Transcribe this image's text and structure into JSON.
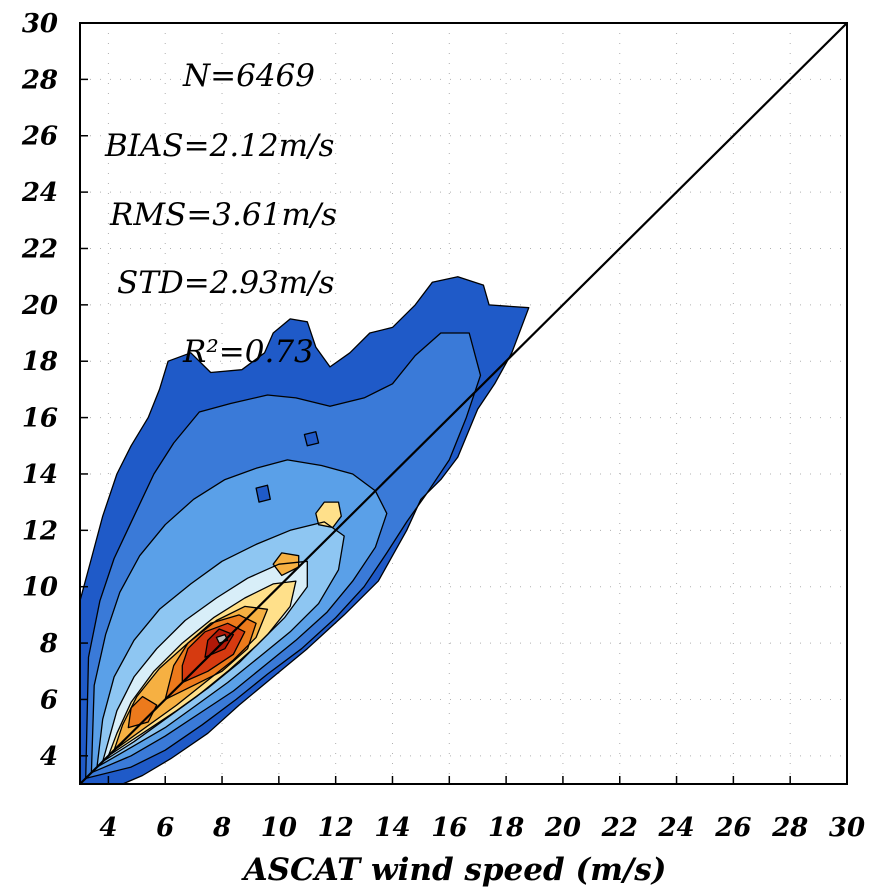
{
  "chart_data": {
    "type": "heatmap",
    "xlabel": "ASCAT wind speed (m/s)",
    "ylabel": "",
    "xlim": [
      3,
      30
    ],
    "ylim": [
      3,
      30
    ],
    "x_ticks": [
      4,
      6,
      8,
      10,
      12,
      14,
      16,
      18,
      20,
      22,
      24,
      26,
      28,
      30
    ],
    "y_ticks": [
      4,
      6,
      8,
      10,
      12,
      14,
      16,
      18,
      20,
      22,
      24,
      26,
      28,
      30
    ],
    "grid": true,
    "reference_line": "y = x",
    "annotations": [
      "N=6469",
      "BIAS=2.12m/s",
      "RMS=3.61m/s",
      "STD=2.93m/s",
      "R²=0.73"
    ],
    "stats": {
      "N": 6469,
      "BIAS": 2.12,
      "RMS": 3.61,
      "STD": 2.93,
      "R2": 0.73
    },
    "levels": [
      {
        "color": "#1f5ac8",
        "polygon": [
          [
            3,
            3
          ],
          [
            4.5,
            3
          ],
          [
            5.2,
            3.3
          ],
          [
            6.2,
            3.9
          ],
          [
            7.5,
            4.8
          ],
          [
            8.6,
            5.8
          ],
          [
            9.8,
            6.8
          ],
          [
            11,
            7.8
          ],
          [
            12.3,
            9
          ],
          [
            13.5,
            10.2
          ],
          [
            14,
            11.1
          ],
          [
            14.5,
            12
          ],
          [
            15,
            13.1
          ],
          [
            15.7,
            13.8
          ],
          [
            16.3,
            14.6
          ],
          [
            17,
            16.3
          ],
          [
            17.6,
            17.2
          ],
          [
            18.2,
            18.3
          ],
          [
            18.8,
            19.9
          ],
          [
            17.4,
            20
          ],
          [
            17.2,
            20.7
          ],
          [
            16.3,
            21
          ],
          [
            15.4,
            20.8
          ],
          [
            14.8,
            20
          ],
          [
            14,
            19.2
          ],
          [
            13.2,
            19
          ],
          [
            12.5,
            18.3
          ],
          [
            11.8,
            17.8
          ],
          [
            11.3,
            18.5
          ],
          [
            11,
            19.4
          ],
          [
            10.4,
            19.5
          ],
          [
            9.8,
            19
          ],
          [
            9.5,
            18.3
          ],
          [
            8.7,
            17.7
          ],
          [
            7.6,
            17.6
          ],
          [
            6.9,
            18.3
          ],
          [
            6.1,
            18
          ],
          [
            5.8,
            17
          ],
          [
            5.4,
            16
          ],
          [
            4.8,
            15
          ],
          [
            4.3,
            14
          ],
          [
            3.8,
            12.5
          ],
          [
            3.4,
            11
          ],
          [
            3,
            9.5
          ]
        ]
      },
      {
        "color": "#3a7ad8",
        "polygon": [
          [
            3.2,
            3.2
          ],
          [
            4.8,
            3.6
          ],
          [
            6,
            4.2
          ],
          [
            7.3,
            5.1
          ],
          [
            8.5,
            6
          ],
          [
            9.6,
            6.9
          ],
          [
            10.8,
            7.8
          ],
          [
            12,
            8.9
          ],
          [
            13,
            10
          ],
          [
            13.8,
            11.2
          ],
          [
            14.5,
            12.3
          ],
          [
            15.2,
            13.3
          ],
          [
            16,
            14.5
          ],
          [
            16.6,
            16
          ],
          [
            17.1,
            17.5
          ],
          [
            16.7,
            19
          ],
          [
            15.7,
            19
          ],
          [
            14.8,
            18.2
          ],
          [
            14,
            17.2
          ],
          [
            13,
            16.7
          ],
          [
            11.8,
            16.4
          ],
          [
            10.6,
            16.7
          ],
          [
            9.6,
            16.8
          ],
          [
            8.3,
            16.5
          ],
          [
            7.2,
            16.2
          ],
          [
            6.3,
            15.1
          ],
          [
            5.6,
            14
          ],
          [
            4.9,
            12.5
          ],
          [
            4.2,
            11
          ],
          [
            3.7,
            9.5
          ],
          [
            3.3,
            7.5
          ]
        ]
      },
      {
        "color": "#5aa0e8",
        "polygon": [
          [
            3.4,
            3.4
          ],
          [
            4.8,
            4
          ],
          [
            6,
            4.7
          ],
          [
            7.2,
            5.5
          ],
          [
            8.4,
            6.3
          ],
          [
            9.5,
            7.2
          ],
          [
            10.6,
            8.1
          ],
          [
            11.7,
            9.1
          ],
          [
            12.6,
            10.2
          ],
          [
            13.4,
            11.4
          ],
          [
            13.8,
            12.6
          ],
          [
            13.4,
            13.4
          ],
          [
            12.6,
            14
          ],
          [
            11.5,
            14.3
          ],
          [
            10.3,
            14.5
          ],
          [
            9.2,
            14.2
          ],
          [
            8.1,
            13.8
          ],
          [
            7,
            13.1
          ],
          [
            6,
            12.2
          ],
          [
            5.1,
            11.1
          ],
          [
            4.4,
            9.8
          ],
          [
            3.9,
            8.3
          ],
          [
            3.5,
            6.5
          ]
        ]
      },
      {
        "color": "#8ec6f2",
        "polygon": [
          [
            3.6,
            3.6
          ],
          [
            4.8,
            4.3
          ],
          [
            6,
            5
          ],
          [
            7.1,
            5.8
          ],
          [
            8.2,
            6.6
          ],
          [
            9.3,
            7.5
          ],
          [
            10.4,
            8.4
          ],
          [
            11.4,
            9.4
          ],
          [
            12.1,
            10.6
          ],
          [
            12.3,
            11.8
          ],
          [
            11.6,
            12.3
          ],
          [
            10.4,
            12
          ],
          [
            9.2,
            11.5
          ],
          [
            8,
            10.9
          ],
          [
            6.9,
            10.1
          ],
          [
            5.8,
            9.2
          ],
          [
            4.9,
            8.1
          ],
          [
            4.2,
            6.8
          ],
          [
            3.8,
            5.3
          ]
        ]
      },
      {
        "color": "#d8eef8",
        "polygon": [
          [
            3.8,
            3.8
          ],
          [
            4.9,
            4.5
          ],
          [
            6,
            5.3
          ],
          [
            7.1,
            6.1
          ],
          [
            8.2,
            7
          ],
          [
            9.2,
            7.9
          ],
          [
            10.2,
            8.9
          ],
          [
            11,
            10
          ],
          [
            11,
            10.9
          ],
          [
            10,
            10.8
          ],
          [
            8.9,
            10.3
          ],
          [
            7.8,
            9.6
          ],
          [
            6.7,
            8.8
          ],
          [
            5.7,
            7.8
          ],
          [
            4.9,
            6.8
          ],
          [
            4.3,
            5.6
          ]
        ]
      },
      {
        "color": "#ffe08a",
        "polygon": [
          [
            4,
            4
          ],
          [
            5.2,
            4.8
          ],
          [
            6.4,
            5.6
          ],
          [
            7.5,
            6.4
          ],
          [
            8.6,
            7.3
          ],
          [
            9.6,
            8.3
          ],
          [
            10.4,
            9.3
          ],
          [
            10.6,
            10.2
          ],
          [
            9.8,
            10.1
          ],
          [
            8.8,
            9.6
          ],
          [
            7.7,
            8.9
          ],
          [
            6.6,
            8
          ],
          [
            5.6,
            7
          ],
          [
            4.8,
            5.9
          ],
          [
            4.3,
            4.8
          ]
        ]
      },
      {
        "color": "#f6b042",
        "polygon": [
          [
            4.2,
            4.2
          ],
          [
            5.3,
            5
          ],
          [
            6.4,
            5.8
          ],
          [
            7.4,
            6.6
          ],
          [
            8.4,
            7.4
          ],
          [
            9.2,
            8.2
          ],
          [
            9.6,
            9.2
          ],
          [
            8.8,
            9.3
          ],
          [
            7.8,
            8.8
          ],
          [
            6.8,
            8
          ],
          [
            5.8,
            7.1
          ],
          [
            5,
            6.1
          ],
          [
            4.5,
            5.1
          ]
        ]
      },
      {
        "color": "#ec7a1c",
        "polygon": [
          [
            6,
            6
          ],
          [
            7,
            6.5
          ],
          [
            8,
            7
          ],
          [
            8.9,
            7.8
          ],
          [
            9.2,
            8.7
          ],
          [
            8.6,
            9
          ],
          [
            7.6,
            8.7
          ],
          [
            6.8,
            8
          ],
          [
            6.3,
            7.2
          ]
        ]
      },
      {
        "color": "#d63a10",
        "polygon": [
          [
            6.6,
            6.6
          ],
          [
            7.5,
            7
          ],
          [
            8.4,
            7.6
          ],
          [
            8.8,
            8.4
          ],
          [
            8.2,
            8.7
          ],
          [
            7.4,
            8.4
          ],
          [
            6.8,
            7.8
          ],
          [
            6.6,
            7.2
          ]
        ]
      },
      {
        "color": "#b01808",
        "polygon": [
          [
            7.4,
            7.5
          ],
          [
            8.1,
            7.8
          ],
          [
            8.4,
            8.3
          ],
          [
            7.9,
            8.5
          ],
          [
            7.5,
            8.1
          ]
        ]
      },
      {
        "color": "#ec7a1c",
        "polygon": [
          [
            4.7,
            5
          ],
          [
            5.4,
            5.2
          ],
          [
            5.7,
            5.8
          ],
          [
            5.2,
            6.1
          ],
          [
            4.8,
            5.7
          ]
        ]
      },
      {
        "color": "#f6b042",
        "polygon": [
          [
            10.1,
            10.4
          ],
          [
            10.7,
            10.7
          ],
          [
            10.7,
            11.1
          ],
          [
            10.1,
            11.2
          ],
          [
            9.8,
            10.8
          ]
        ]
      },
      {
        "color": "#ffe08a",
        "polygon": [
          [
            11.4,
            12.2
          ],
          [
            11.9,
            12.1
          ],
          [
            12.2,
            12.5
          ],
          [
            12.1,
            13
          ],
          [
            11.6,
            13
          ],
          [
            11.3,
            12.6
          ]
        ]
      },
      {
        "color": "#b8b8b8",
        "polygon": [
          [
            7.9,
            8
          ],
          [
            8.2,
            8.1
          ],
          [
            8.1,
            8.3
          ],
          [
            7.8,
            8.2
          ]
        ]
      },
      {
        "color": "#1f5ac8",
        "polygon": [
          [
            9.3,
            13
          ],
          [
            9.7,
            13.1
          ],
          [
            9.6,
            13.6
          ],
          [
            9.2,
            13.5
          ]
        ]
      },
      {
        "color": "#1f5ac8",
        "polygon": [
          [
            11,
            15
          ],
          [
            11.4,
            15.1
          ],
          [
            11.3,
            15.5
          ],
          [
            10.9,
            15.4
          ]
        ]
      }
    ]
  }
}
